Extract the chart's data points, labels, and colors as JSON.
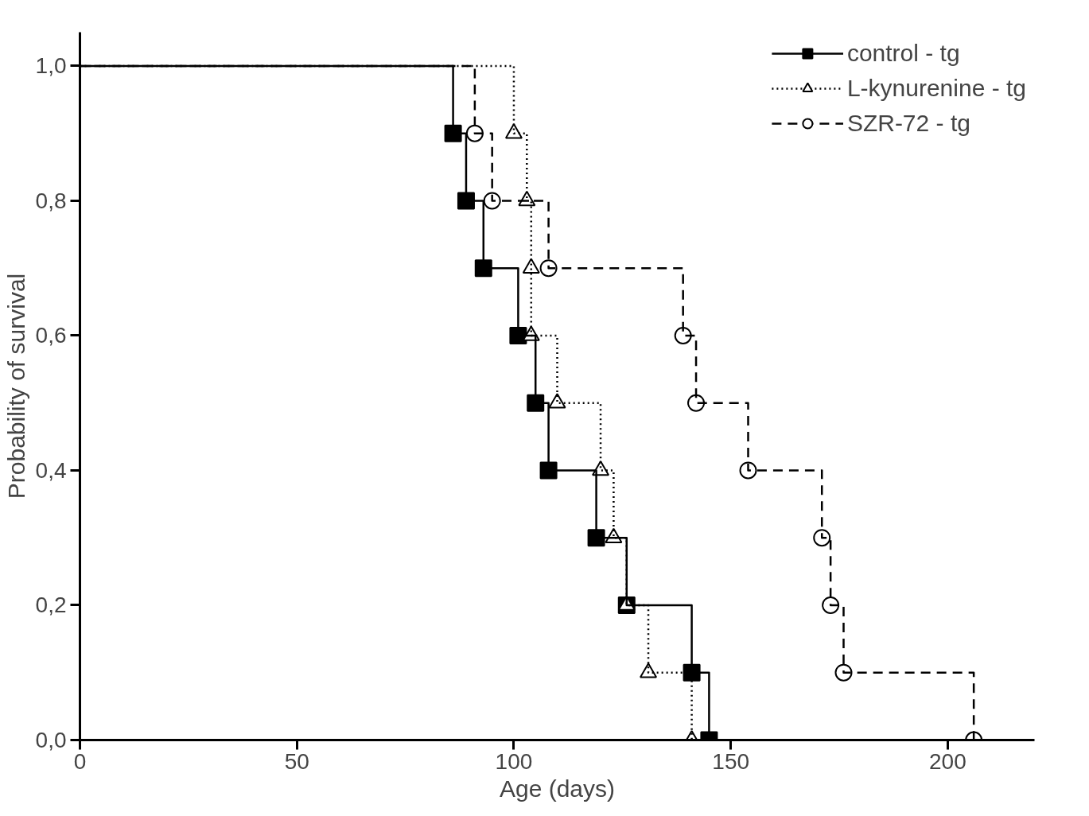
{
  "chart_data": {
    "type": "step",
    "xlabel": "Age (days)",
    "ylabel": "Probability of survival",
    "xlim": [
      0,
      220
    ],
    "ylim": [
      0,
      1.05
    ],
    "xticks": [
      0,
      50,
      100,
      150,
      200
    ],
    "yticks": [
      {
        "value": 0,
        "label": "0,0"
      },
      {
        "value": 0.2,
        "label": "0,2"
      },
      {
        "value": 0.4,
        "label": "0,4"
      },
      {
        "value": 0.6,
        "label": "0,6"
      },
      {
        "value": 0.8,
        "label": "0,8"
      },
      {
        "value": 1.0,
        "label": "1,0"
      }
    ],
    "grid": false,
    "legend": "top right",
    "series": [
      {
        "name": "control - tg",
        "color": "#000000",
        "marker": "square",
        "line_style": "solid",
        "x": [
          0,
          86,
          89,
          93,
          101,
          105,
          108,
          119,
          126,
          141,
          145
        ],
        "values": [
          1.0,
          0.9,
          0.8,
          0.7,
          0.6,
          0.5,
          0.4,
          0.3,
          0.2,
          0.1,
          0.0
        ]
      },
      {
        "name": "L-kynurenine - tg",
        "color": "#000000",
        "marker": "triangle",
        "line_style": "dotted",
        "x": [
          0,
          100,
          103,
          104,
          104,
          110,
          120,
          123,
          126,
          131,
          141
        ],
        "values": [
          1.0,
          0.9,
          0.8,
          0.7,
          0.6,
          0.5,
          0.4,
          0.3,
          0.2,
          0.1,
          0.0
        ]
      },
      {
        "name": "SZR-72 - tg",
        "color": "#000000",
        "marker": "circle",
        "line_style": "dashed",
        "x": [
          0,
          91,
          95,
          108,
          139,
          142,
          154,
          171,
          173,
          176,
          206
        ],
        "values": [
          1.0,
          0.9,
          0.8,
          0.7,
          0.6,
          0.5,
          0.4,
          0.3,
          0.2,
          0.1,
          0.0
        ]
      }
    ]
  }
}
